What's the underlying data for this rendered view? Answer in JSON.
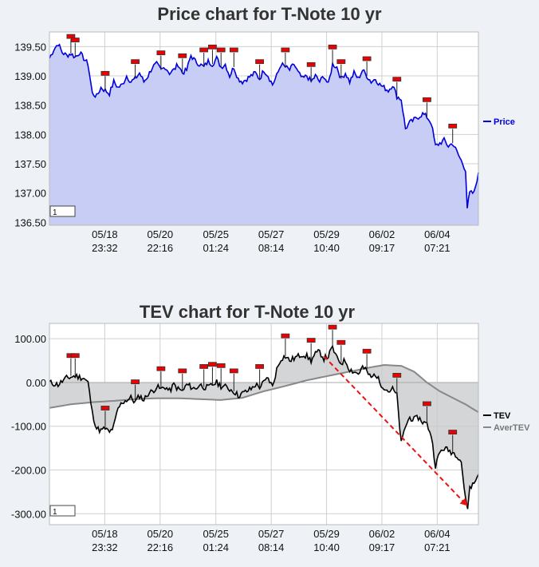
{
  "chart_data": [
    {
      "type": "area",
      "title": "Price chart for T-Note 10 yr",
      "xlabel": "",
      "ylabel": "",
      "ylim": [
        136.45,
        139.75
      ],
      "yticks": [
        136.5,
        137.0,
        137.5,
        138.0,
        138.5,
        139.0,
        139.5
      ],
      "ytick_labels": [
        "136.50",
        "137.00",
        "137.50",
        "138.00",
        "138.50",
        "139.00",
        "139.50"
      ],
      "x_ticks": [
        {
          "date": "05/18",
          "time": "23:32",
          "i": 0.129
        },
        {
          "date": "05/20",
          "time": "22:16",
          "i": 0.258
        },
        {
          "date": "05/25",
          "time": "01:24",
          "i": 0.388
        },
        {
          "date": "05/27",
          "time": "08:14",
          "i": 0.517
        },
        {
          "date": "05/29",
          "time": "10:40",
          "i": 0.646
        },
        {
          "date": "06/02",
          "time": "09:17",
          "i": 0.775
        },
        {
          "date": "06/04",
          "time": "07:21",
          "i": 0.904
        }
      ],
      "grid": true,
      "legend_position": "right",
      "input_value": "1",
      "series": [
        {
          "name": "Price",
          "color": "#0000dd",
          "fill": "#c8cdf6",
          "points": [
            [
              0.0,
              139.3
            ],
            [
              0.01,
              139.45
            ],
            [
              0.02,
              139.55
            ],
            [
              0.03,
              139.4
            ],
            [
              0.04,
              139.35
            ],
            [
              0.05,
              139.38
            ],
            [
              0.06,
              139.32
            ],
            [
              0.07,
              139.4
            ],
            [
              0.08,
              139.3
            ],
            [
              0.09,
              139.2
            ],
            [
              0.1,
              138.7
            ],
            [
              0.11,
              138.65
            ],
            [
              0.12,
              138.8
            ],
            [
              0.13,
              138.75
            ],
            [
              0.14,
              138.7
            ],
            [
              0.15,
              138.9
            ],
            [
              0.16,
              138.8
            ],
            [
              0.17,
              138.85
            ],
            [
              0.18,
              139.0
            ],
            [
              0.19,
              138.9
            ],
            [
              0.2,
              138.95
            ],
            [
              0.21,
              139.05
            ],
            [
              0.22,
              138.9
            ],
            [
              0.23,
              139.0
            ],
            [
              0.24,
              139.15
            ],
            [
              0.25,
              139.2
            ],
            [
              0.26,
              139.1
            ],
            [
              0.27,
              139.15
            ],
            [
              0.28,
              139.05
            ],
            [
              0.29,
              139.1
            ],
            [
              0.3,
              139.2
            ],
            [
              0.31,
              139.05
            ],
            [
              0.32,
              139.1
            ],
            [
              0.33,
              139.35
            ],
            [
              0.34,
              139.25
            ],
            [
              0.35,
              139.2
            ],
            [
              0.36,
              139.15
            ],
            [
              0.37,
              139.25
            ],
            [
              0.38,
              139.2
            ],
            [
              0.39,
              139.3
            ],
            [
              0.4,
              139.15
            ],
            [
              0.41,
              139.2
            ],
            [
              0.42,
              139.0
            ],
            [
              0.43,
              139.15
            ],
            [
              0.44,
              138.95
            ],
            [
              0.45,
              138.9
            ],
            [
              0.46,
              138.95
            ],
            [
              0.47,
              139.0
            ],
            [
              0.48,
              139.05
            ],
            [
              0.49,
              138.95
            ],
            [
              0.5,
              139.1
            ],
            [
              0.51,
              139.0
            ],
            [
              0.52,
              138.85
            ],
            [
              0.53,
              139.0
            ],
            [
              0.54,
              139.2
            ],
            [
              0.55,
              139.15
            ],
            [
              0.56,
              139.1
            ],
            [
              0.57,
              139.2
            ],
            [
              0.58,
              139.05
            ],
            [
              0.59,
              138.95
            ],
            [
              0.6,
              139.0
            ],
            [
              0.61,
              138.9
            ],
            [
              0.62,
              139.0
            ],
            [
              0.63,
              138.9
            ],
            [
              0.64,
              139.0
            ],
            [
              0.65,
              138.85
            ],
            [
              0.66,
              139.2
            ],
            [
              0.67,
              139.15
            ],
            [
              0.68,
              138.95
            ],
            [
              0.69,
              139.05
            ],
            [
              0.7,
              138.9
            ],
            [
              0.71,
              139.05
            ],
            [
              0.72,
              138.95
            ],
            [
              0.73,
              139.1
            ],
            [
              0.74,
              139.0
            ],
            [
              0.75,
              138.9
            ],
            [
              0.76,
              138.95
            ],
            [
              0.77,
              138.85
            ],
            [
              0.78,
              138.8
            ],
            [
              0.79,
              138.75
            ],
            [
              0.8,
              138.85
            ],
            [
              0.81,
              138.65
            ],
            [
              0.82,
              138.6
            ],
            [
              0.83,
              138.1
            ],
            [
              0.84,
              138.2
            ],
            [
              0.85,
              138.25
            ],
            [
              0.86,
              138.3
            ],
            [
              0.87,
              138.35
            ],
            [
              0.88,
              138.3
            ],
            [
              0.89,
              138.2
            ],
            [
              0.9,
              137.8
            ],
            [
              0.91,
              137.85
            ],
            [
              0.92,
              137.9
            ],
            [
              0.93,
              137.8
            ],
            [
              0.94,
              137.85
            ],
            [
              0.95,
              137.7
            ],
            [
              0.96,
              137.55
            ],
            [
              0.97,
              137.4
            ],
            [
              0.974,
              136.75
            ],
            [
              0.98,
              137.0
            ],
            [
              0.99,
              137.0
            ],
            [
              1.0,
              137.35
            ]
          ]
        }
      ]
    },
    {
      "type": "line",
      "title": "TEV chart for T-Note 10 yr",
      "xlabel": "",
      "ylabel": "",
      "ylim": [
        -325,
        135
      ],
      "yticks": [
        100,
        0,
        -100,
        -200,
        -300
      ],
      "ytick_labels": [
        "100.00",
        "0.00",
        "-100.00",
        "-200.00",
        "-300.00"
      ],
      "x_ticks": [
        {
          "date": "05/18",
          "time": "23:32",
          "i": 0.129
        },
        {
          "date": "05/20",
          "time": "22:16",
          "i": 0.258
        },
        {
          "date": "05/25",
          "time": "01:24",
          "i": 0.388
        },
        {
          "date": "05/27",
          "time": "08:14",
          "i": 0.517
        },
        {
          "date": "05/29",
          "time": "10:40",
          "i": 0.646
        },
        {
          "date": "06/02",
          "time": "09:17",
          "i": 0.775
        },
        {
          "date": "06/04",
          "time": "07:21",
          "i": 0.904
        }
      ],
      "grid": true,
      "legend_position": "right",
      "input_value": "1",
      "series": [
        {
          "name": "TEV",
          "color": "#000000",
          "points": [
            [
              0.0,
              0
            ],
            [
              0.02,
              -5
            ],
            [
              0.04,
              10
            ],
            [
              0.06,
              15
            ],
            [
              0.08,
              10
            ],
            [
              0.09,
              0
            ],
            [
              0.1,
              -70
            ],
            [
              0.11,
              -105
            ],
            [
              0.12,
              -110
            ],
            [
              0.13,
              -105
            ],
            [
              0.14,
              -115
            ],
            [
              0.15,
              -100
            ],
            [
              0.16,
              -60
            ],
            [
              0.17,
              -45
            ],
            [
              0.18,
              -40
            ],
            [
              0.19,
              -35
            ],
            [
              0.2,
              -45
            ],
            [
              0.21,
              -30
            ],
            [
              0.22,
              -40
            ],
            [
              0.23,
              -25
            ],
            [
              0.24,
              -20
            ],
            [
              0.25,
              -10
            ],
            [
              0.26,
              -15
            ],
            [
              0.27,
              -10
            ],
            [
              0.28,
              -20
            ],
            [
              0.29,
              -5
            ],
            [
              0.3,
              -15
            ],
            [
              0.31,
              -20
            ],
            [
              0.32,
              -5
            ],
            [
              0.33,
              -10
            ],
            [
              0.34,
              -15
            ],
            [
              0.35,
              -5
            ],
            [
              0.36,
              -10
            ],
            [
              0.37,
              -12
            ],
            [
              0.38,
              -5
            ],
            [
              0.39,
              0
            ],
            [
              0.4,
              -8
            ],
            [
              0.41,
              -10
            ],
            [
              0.42,
              -15
            ],
            [
              0.43,
              -20
            ],
            [
              0.44,
              -30
            ],
            [
              0.45,
              -25
            ],
            [
              0.46,
              -20
            ],
            [
              0.47,
              -15
            ],
            [
              0.48,
              -5
            ],
            [
              0.49,
              -10
            ],
            [
              0.5,
              0
            ],
            [
              0.51,
              10
            ],
            [
              0.52,
              -10
            ],
            [
              0.53,
              30
            ],
            [
              0.54,
              55
            ],
            [
              0.55,
              60
            ],
            [
              0.56,
              50
            ],
            [
              0.57,
              55
            ],
            [
              0.58,
              60
            ],
            [
              0.59,
              65
            ],
            [
              0.6,
              60
            ],
            [
              0.61,
              50
            ],
            [
              0.62,
              65
            ],
            [
              0.63,
              70
            ],
            [
              0.64,
              55
            ],
            [
              0.65,
              60
            ],
            [
              0.66,
              80
            ],
            [
              0.67,
              55
            ],
            [
              0.68,
              45
            ],
            [
              0.69,
              50
            ],
            [
              0.7,
              30
            ],
            [
              0.71,
              25
            ],
            [
              0.72,
              20
            ],
            [
              0.73,
              35
            ],
            [
              0.74,
              25
            ],
            [
              0.75,
              10
            ],
            [
              0.76,
              20
            ],
            [
              0.77,
              0
            ],
            [
              0.78,
              -10
            ],
            [
              0.79,
              -20
            ],
            [
              0.8,
              -15
            ],
            [
              0.81,
              -30
            ],
            [
              0.82,
              -140
            ],
            [
              0.83,
              -100
            ],
            [
              0.84,
              -80
            ],
            [
              0.85,
              -85
            ],
            [
              0.86,
              -80
            ],
            [
              0.87,
              -90
            ],
            [
              0.88,
              -95
            ],
            [
              0.89,
              -120
            ],
            [
              0.9,
              -190
            ],
            [
              0.91,
              -160
            ],
            [
              0.92,
              -150
            ],
            [
              0.93,
              -155
            ],
            [
              0.94,
              -160
            ],
            [
              0.95,
              -165
            ],
            [
              0.96,
              -180
            ],
            [
              0.97,
              -270
            ],
            [
              0.975,
              -285
            ],
            [
              0.98,
              -240
            ],
            [
              0.99,
              -230
            ],
            [
              1.0,
              -210
            ]
          ]
        },
        {
          "name": "AverTEV",
          "color": "#888888",
          "points": [
            [
              0.0,
              -58
            ],
            [
              0.05,
              -50
            ],
            [
              0.1,
              -45
            ],
            [
              0.15,
              -42
            ],
            [
              0.2,
              -38
            ],
            [
              0.25,
              -36
            ],
            [
              0.3,
              -36
            ],
            [
              0.35,
              -38
            ],
            [
              0.4,
              -40
            ],
            [
              0.45,
              -35
            ],
            [
              0.5,
              -20
            ],
            [
              0.55,
              -8
            ],
            [
              0.6,
              5
            ],
            [
              0.65,
              15
            ],
            [
              0.7,
              25
            ],
            [
              0.75,
              35
            ],
            [
              0.78,
              40
            ],
            [
              0.82,
              38
            ],
            [
              0.85,
              25
            ],
            [
              0.88,
              0
            ],
            [
              0.91,
              -20
            ],
            [
              0.94,
              -35
            ],
            [
              0.97,
              -50
            ],
            [
              1.0,
              -68
            ]
          ]
        }
      ]
    }
  ]
}
